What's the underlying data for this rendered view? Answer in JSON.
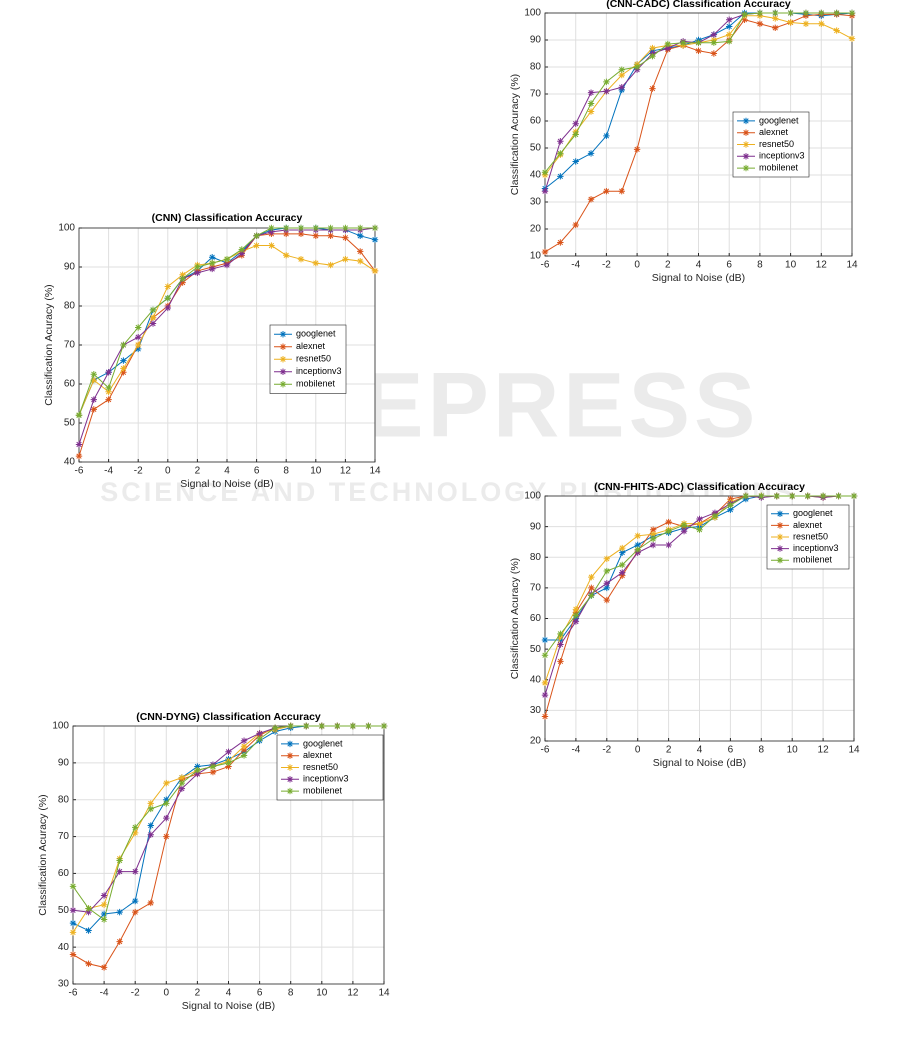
{
  "watermark": {
    "title": "SCITEPRESS",
    "subtitle": "SCIENCE AND TECHNOLOGY PUBLICATIONS"
  },
  "chart_data": [
    {
      "type": "line",
      "title": "(CNN) Classification Accuracy",
      "x_label": "Signal to Noise (dB)",
      "y_label": "Classification Acuracy (%)",
      "x": [
        -6,
        -5,
        -4,
        -3,
        -2,
        -1,
        0,
        1,
        2,
        3,
        4,
        5,
        6,
        7,
        8,
        9,
        10,
        11,
        12,
        13,
        14
      ],
      "xlim": [
        -6,
        14
      ],
      "xticks": [
        -6,
        -4,
        -2,
        0,
        2,
        4,
        6,
        8,
        10,
        12,
        14
      ],
      "ylim": [
        40,
        100
      ],
      "yticks": [
        40,
        50,
        60,
        70,
        80,
        90,
        100
      ],
      "grid": true,
      "legend": "right",
      "series": [
        {
          "name": "googlenet",
          "color": "#0072bd",
          "values": [
            52,
            61,
            63,
            66,
            69,
            79,
            82,
            87,
            89,
            92.5,
            91,
            94,
            98,
            99.5,
            100,
            100,
            100,
            99.5,
            99.5,
            98,
            97
          ]
        },
        {
          "name": "alexnet",
          "color": "#d95319",
          "values": [
            41.5,
            53.5,
            56,
            63,
            70,
            77,
            80,
            86,
            89,
            90,
            91,
            93,
            98,
            98.5,
            98.5,
            98.5,
            98,
            98,
            97.5,
            94,
            89
          ]
        },
        {
          "name": "resnet50",
          "color": "#edb120",
          "values": [
            52,
            61,
            58,
            64,
            70,
            77,
            85,
            88,
            90.5,
            91,
            92,
            94,
            95.5,
            95.5,
            93,
            92,
            91,
            90.5,
            92,
            91.5,
            89
          ]
        },
        {
          "name": "inceptionv3",
          "color": "#7e2f8e",
          "values": [
            44.5,
            56,
            63,
            70,
            72,
            75.5,
            79.5,
            87,
            88.5,
            89.5,
            90.5,
            93.5,
            98,
            99,
            99.5,
            99.5,
            99.5,
            99.5,
            99.5,
            99.5,
            100
          ]
        },
        {
          "name": "mobilenet",
          "color": "#77ac30",
          "values": [
            52,
            62.5,
            59,
            70,
            74.5,
            79,
            82,
            87,
            90,
            91,
            92,
            94.5,
            98,
            100,
            100,
            100,
            100,
            100,
            100,
            100,
            100
          ]
        }
      ]
    },
    {
      "type": "line",
      "title": "(CNN-CADC) Classification Accuracy",
      "x_label": "Signal to Noise (dB)",
      "y_label": "Classification Acuracy (%)",
      "x": [
        -6,
        -5,
        -4,
        -3,
        -2,
        -1,
        0,
        1,
        2,
        3,
        4,
        5,
        6,
        7,
        8,
        9,
        10,
        11,
        12,
        13,
        14
      ],
      "xlim": [
        -6,
        14
      ],
      "xticks": [
        -6,
        -4,
        -2,
        0,
        2,
        4,
        6,
        8,
        10,
        12,
        14
      ],
      "ylim": [
        10,
        100
      ],
      "yticks": [
        10,
        20,
        30,
        40,
        50,
        60,
        70,
        80,
        90,
        100
      ],
      "grid": true,
      "legend": "right",
      "series": [
        {
          "name": "googlenet",
          "color": "#0072bd",
          "values": [
            35,
            39.5,
            45,
            48,
            54.5,
            71.5,
            81,
            86,
            87,
            88,
            90,
            92,
            95,
            100,
            100,
            100,
            100,
            99.5,
            99,
            99.5,
            100
          ]
        },
        {
          "name": "alexnet",
          "color": "#d95319",
          "values": [
            11.5,
            15,
            21.5,
            31,
            34,
            34,
            49.5,
            72,
            86.5,
            88,
            86,
            85,
            90,
            97.5,
            96,
            94.5,
            96.5,
            99,
            99.5,
            99.5,
            99
          ]
        },
        {
          "name": "resnet50",
          "color": "#edb120",
          "values": [
            40,
            47.5,
            56,
            63.5,
            71,
            77,
            81,
            87,
            88,
            88,
            89,
            90,
            92,
            99,
            99,
            98,
            96.5,
            96,
            96,
            93.5,
            90.5
          ]
        },
        {
          "name": "inceptionv3",
          "color": "#7e2f8e",
          "values": [
            34,
            52.5,
            59,
            70.5,
            71,
            72.5,
            79,
            85,
            87,
            89.5,
            89,
            92,
            97.5,
            99.5,
            100,
            100,
            100,
            100,
            100,
            100,
            100
          ]
        },
        {
          "name": "mobilenet",
          "color": "#77ac30",
          "values": [
            41,
            48,
            55,
            66.5,
            74.5,
            79,
            80,
            84,
            88.5,
            89,
            89,
            89,
            89.5,
            99.5,
            100,
            100,
            100,
            100,
            100,
            100,
            100
          ]
        }
      ]
    },
    {
      "type": "line",
      "title": "(CNN-FHITS-ADC) Classification Accuracy",
      "x_label": "Signal to Noise (dB)",
      "y_label": "Classification Acuracy (%)",
      "x": [
        -6,
        -5,
        -4,
        -3,
        -2,
        -1,
        0,
        1,
        2,
        3,
        4,
        5,
        6,
        7,
        8,
        9,
        10,
        11,
        12,
        13,
        14
      ],
      "xlim": [
        -6,
        14
      ],
      "xticks": [
        -6,
        -4,
        -2,
        0,
        2,
        4,
        6,
        8,
        10,
        12,
        14
      ],
      "ylim": [
        20,
        100
      ],
      "yticks": [
        20,
        30,
        40,
        50,
        60,
        70,
        80,
        90,
        100
      ],
      "grid": true,
      "legend": "top right",
      "series": [
        {
          "name": "googlenet",
          "color": "#0072bd",
          "values": [
            53,
            53,
            60,
            67.5,
            70,
            81.5,
            84,
            87,
            88,
            89.5,
            90,
            93,
            95.5,
            99,
            100,
            100,
            100,
            100,
            100,
            100,
            100
          ]
        },
        {
          "name": "alexnet",
          "color": "#d95319",
          "values": [
            28,
            46,
            62,
            70,
            66,
            74,
            82,
            89,
            91.5,
            90,
            91,
            94,
            99,
            100,
            100,
            100,
            100,
            100,
            100,
            100,
            100
          ]
        },
        {
          "name": "resnet50",
          "color": "#edb120",
          "values": [
            39,
            54,
            63,
            73.5,
            79.5,
            83,
            87,
            87.5,
            89,
            91,
            91,
            93,
            98,
            100,
            100,
            100,
            100,
            100,
            99.5,
            100,
            100
          ]
        },
        {
          "name": "inceptionv3",
          "color": "#7e2f8e",
          "values": [
            35,
            51.5,
            59,
            68,
            71.5,
            75,
            81.5,
            84,
            84,
            88.5,
            92.5,
            94.5,
            97.5,
            100,
            99.5,
            100,
            100,
            100,
            99.5,
            100,
            100
          ]
        },
        {
          "name": "mobilenet",
          "color": "#77ac30",
          "values": [
            48,
            55,
            61,
            67.5,
            75.5,
            77.5,
            82.5,
            86,
            88.5,
            90.5,
            89,
            93.5,
            97,
            100,
            100,
            100,
            100,
            100,
            100,
            100,
            100
          ]
        }
      ]
    },
    {
      "type": "line",
      "title": "(CNN-DYNG) Classification Accuracy",
      "x_label": "Signal to Noise (dB)",
      "y_label": "Classification Acuracy (%)",
      "x": [
        -6,
        -5,
        -4,
        -3,
        -2,
        -1,
        0,
        1,
        2,
        3,
        4,
        5,
        6,
        7,
        8,
        9,
        10,
        11,
        12,
        13,
        14
      ],
      "xlim": [
        -6,
        14
      ],
      "xticks": [
        -6,
        -4,
        -2,
        0,
        2,
        4,
        6,
        8,
        10,
        12,
        14
      ],
      "ylim": [
        30,
        100
      ],
      "yticks": [
        30,
        40,
        50,
        60,
        70,
        80,
        90,
        100
      ],
      "grid": true,
      "legend": "top right",
      "series": [
        {
          "name": "googlenet",
          "color": "#0072bd",
          "values": [
            46.5,
            44.5,
            49,
            49.5,
            52.5,
            73,
            80,
            86,
            89,
            89.5,
            91,
            93,
            96,
            98.5,
            99.5,
            100,
            100,
            100,
            100,
            100,
            100
          ]
        },
        {
          "name": "alexnet",
          "color": "#d95319",
          "values": [
            38,
            35.5,
            34.5,
            41.5,
            49.5,
            52,
            70,
            85.5,
            87,
            87.5,
            89,
            93.5,
            97.5,
            99.5,
            100,
            100,
            100,
            100,
            100,
            100,
            100
          ]
        },
        {
          "name": "resnet50",
          "color": "#edb120",
          "values": [
            44,
            50.5,
            51.5,
            64,
            71,
            79,
            84.5,
            86,
            88,
            89,
            90.5,
            94.5,
            98,
            99,
            100,
            100,
            100,
            100,
            100,
            100,
            100
          ]
        },
        {
          "name": "inceptionv3",
          "color": "#7e2f8e",
          "values": [
            50,
            49.5,
            54,
            60.5,
            60.5,
            70.5,
            75,
            83,
            87,
            89.5,
            93,
            96,
            98,
            99.5,
            100,
            100,
            100,
            100,
            100,
            100,
            100
          ]
        },
        {
          "name": "mobilenet",
          "color": "#77ac30",
          "values": [
            56.5,
            50.5,
            47.5,
            63.5,
            72.5,
            77.5,
            79,
            84.5,
            88,
            89,
            90,
            92,
            96.5,
            99.5,
            100,
            100,
            100,
            100,
            100,
            100,
            100
          ]
        }
      ]
    }
  ]
}
